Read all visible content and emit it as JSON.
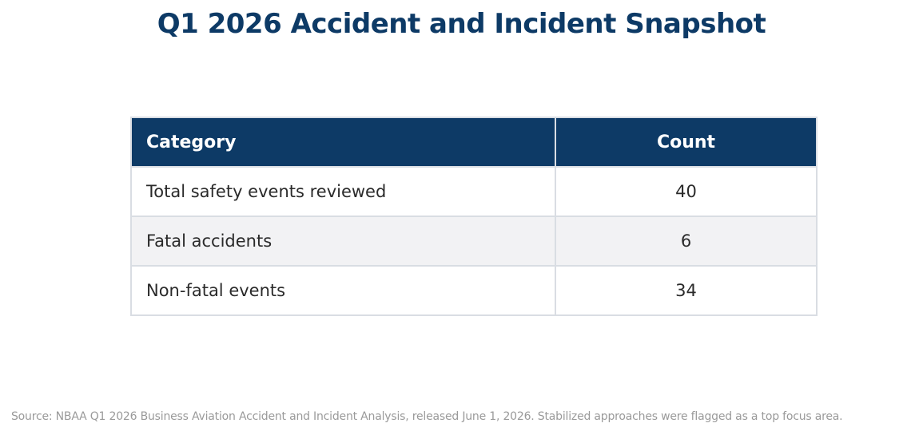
{
  "title": "Q1 2026 Accident and Incident Snapshot",
  "table": {
    "headers": [
      "Category",
      "Count"
    ],
    "rows": [
      [
        "Total safety events reviewed",
        "40"
      ],
      [
        "Fatal accidents",
        "6"
      ],
      [
        "Non-fatal events",
        "34"
      ]
    ]
  },
  "source": "Source: NBAA Q1 2026 Business Aviation Accident and Incident Analysis, released June 1, 2026. Stabilized approaches were flagged as a top focus area.",
  "colors": {
    "header_bg": "#0d3a66",
    "header_text": "#ffffff",
    "title": "#0d3a66",
    "row_alt": "#f2f2f4",
    "border": "#d9dde3",
    "source_text": "#9a9a9a"
  },
  "chart_data": {
    "type": "table",
    "title": "Q1 2026 Accident and Incident Snapshot",
    "columns": [
      "Category",
      "Count"
    ],
    "categories": [
      "Total safety events reviewed",
      "Fatal accidents",
      "Non-fatal events"
    ],
    "values": [
      40,
      6,
      34
    ]
  }
}
